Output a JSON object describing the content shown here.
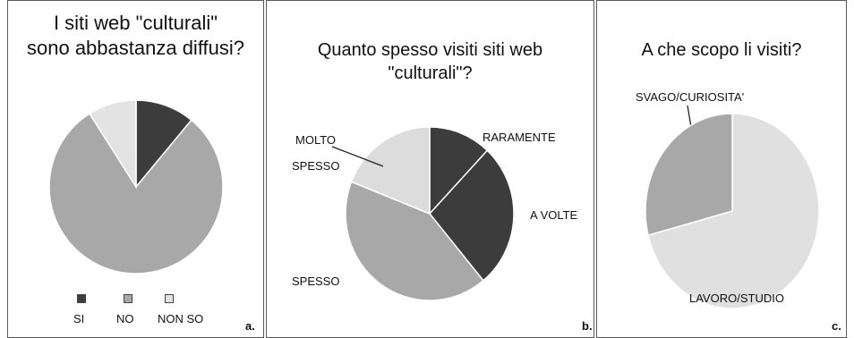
{
  "chart_data": [
    {
      "type": "pie",
      "panel": "a.",
      "title_lines": [
        "I siti web \"culturali\"",
        "sono abbastanza diffusi?"
      ],
      "slices": [
        {
          "label": "SI",
          "value": 11,
          "color": "#3c3c3c"
        },
        {
          "label": "NO",
          "value": 80,
          "color": "#a8a8a8"
        },
        {
          "label": "NON SO",
          "value": 9,
          "color": "#e3e3e3"
        }
      ],
      "legend": "bottom"
    },
    {
      "type": "pie",
      "panel": "b.",
      "title_lines": [
        "Quanto spesso visiti siti web",
        "\"culturali\"?"
      ],
      "slices": [
        {
          "label": "RARAMENTE",
          "value": 12,
          "color": "#3c3c3c"
        },
        {
          "label": "A VOLTE",
          "value": 27,
          "color": "#3c3c3c"
        },
        {
          "label": "SPESSO",
          "value": 42,
          "color": "#a8a8a8"
        },
        {
          "label": "MOLTO SPESSO",
          "value": 19,
          "color": "#dcdcdc"
        }
      ]
    },
    {
      "type": "pie",
      "panel": "c.",
      "title_lines": [
        "A che scopo li  visiti?"
      ],
      "slices": [
        {
          "label": "LAVORO/STUDIO",
          "value": 71,
          "color": "#e0e0e0"
        },
        {
          "label": "SVAGO/CURIOSITA'",
          "value": 29,
          "color": "#a8a8a8"
        }
      ]
    }
  ],
  "labels": {
    "b_molto": "MOLTO",
    "b_spesso_2": "SPESSO"
  }
}
